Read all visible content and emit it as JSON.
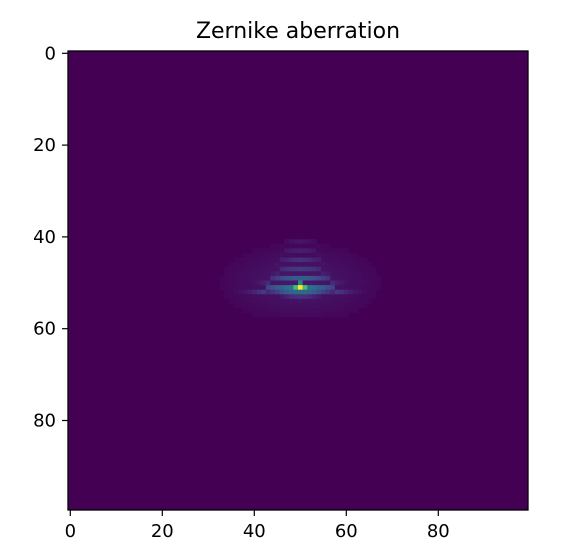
{
  "chart_data": {
    "type": "heatmap",
    "title": "Zernike aberration",
    "xlabel": "",
    "ylabel": "",
    "colormap": "viridis",
    "grid": false,
    "shape": [
      100,
      100
    ],
    "x_range": [
      -0.5,
      99.5
    ],
    "y_range": [
      99.5,
      -0.5
    ],
    "y_inverted": true,
    "x_ticks": [
      0,
      20,
      40,
      60,
      80
    ],
    "x_tick_labels": [
      "0",
      "20",
      "40",
      "60",
      "80"
    ],
    "y_ticks": [
      0,
      20,
      40,
      60,
      80
    ],
    "y_tick_labels": [
      "0",
      "20",
      "40",
      "60",
      "80"
    ],
    "background_value": 0.0,
    "peak": {
      "row": 51,
      "col": 50,
      "value": 1.0
    },
    "pattern": {
      "description_of_shape": "psf-arc-fringes",
      "center_col": 50,
      "arcs": [
        {
          "row": 51,
          "half_width": 12,
          "value": 0.4
        },
        {
          "row": 49,
          "half_width": 10,
          "value": 0.3
        },
        {
          "row": 47,
          "half_width": 8,
          "value": 0.18
        },
        {
          "row": 45,
          "half_width": 7,
          "value": 0.14
        },
        {
          "row": 43,
          "half_width": 6,
          "value": 0.09
        },
        {
          "row": 41,
          "half_width": 5,
          "value": 0.06
        }
      ],
      "below_rows": [
        {
          "row": 52,
          "half_width": 9,
          "value": 0.35
        },
        {
          "row": 53,
          "half_width": 6,
          "value": 0.15
        },
        {
          "row": 54,
          "half_width": 3,
          "value": 0.06
        }
      ]
    }
  }
}
